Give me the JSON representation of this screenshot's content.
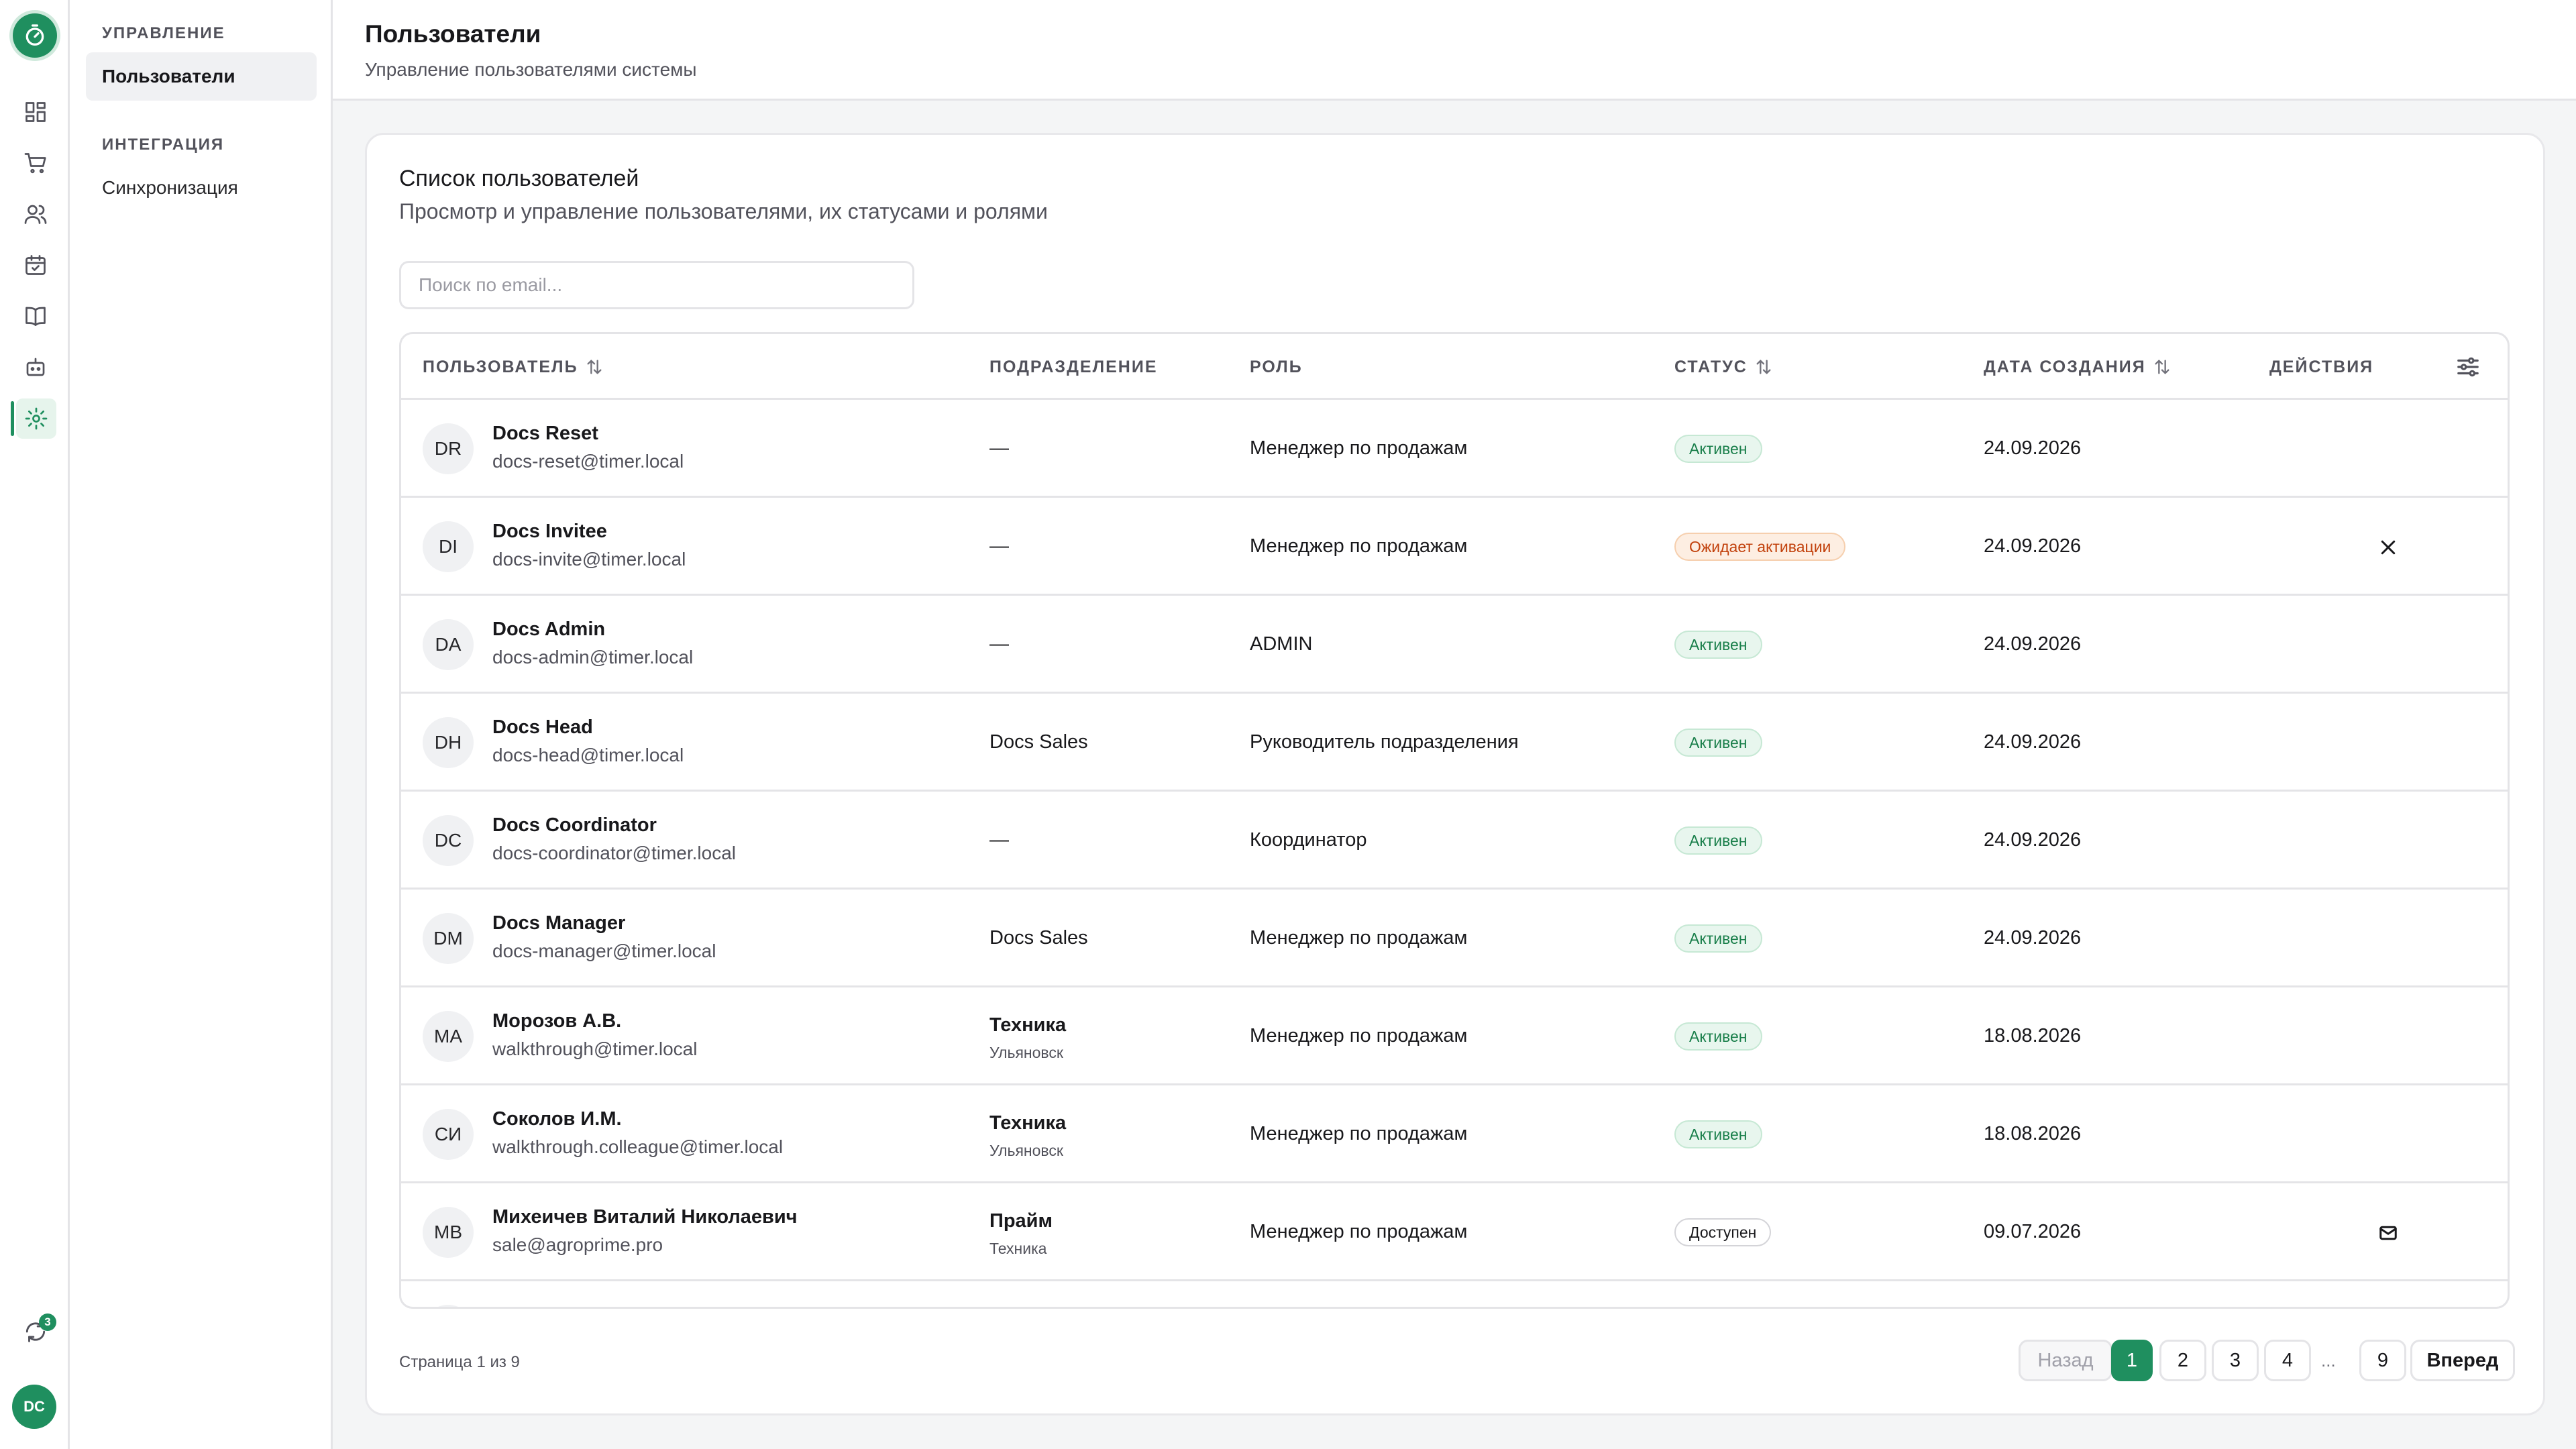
{
  "rail": {
    "icons": [
      "logo-timer-icon",
      "dashboard-icon",
      "cart-icon",
      "users-icon",
      "calendar-icon",
      "book-icon",
      "bot-icon",
      "settings-icon"
    ],
    "sync_badge": "3",
    "user_initials": "DC"
  },
  "sidebar": {
    "groups": [
      {
        "title": "УПРАВЛЕНИЕ",
        "items": [
          {
            "label": "Пользователи",
            "active": true
          }
        ]
      },
      {
        "title": "ИНТЕГРАЦИЯ",
        "items": [
          {
            "label": "Синхронизация",
            "active": false
          }
        ]
      }
    ]
  },
  "header": {
    "title": "Пользователи",
    "subtitle": "Управление пользователями системы"
  },
  "card": {
    "title": "Список пользователей",
    "subtitle": "Просмотр и управление пользователями, их статусами и ролями",
    "search_placeholder": "Поиск по email..."
  },
  "table": {
    "columns": [
      "ПОЛЬЗОВАТЕЛЬ",
      "ПОДРАЗДЕЛЕНИЕ",
      "РОЛЬ",
      "СТАТУС",
      "ДАТА СОЗДАНИЯ",
      "ДЕЙСТВИЯ"
    ],
    "rows": [
      {
        "initials": "DR",
        "name": "Docs Reset",
        "email": "docs-reset@timer.local",
        "dept": "—",
        "dept_sub": "",
        "role": "Менеджер по продажам",
        "status": "Активен",
        "status_kind": "active",
        "date": "24.09.2026",
        "action": ""
      },
      {
        "initials": "DI",
        "name": "Docs Invitee",
        "email": "docs-invite@timer.local",
        "dept": "—",
        "dept_sub": "",
        "role": "Менеджер по продажам",
        "status": "Ожидает активации",
        "status_kind": "pending",
        "date": "24.09.2026",
        "action": "close-icon"
      },
      {
        "initials": "DA",
        "name": "Docs Admin",
        "email": "docs-admin@timer.local",
        "dept": "—",
        "dept_sub": "",
        "role": "ADMIN",
        "status": "Активен",
        "status_kind": "active",
        "date": "24.09.2026",
        "action": ""
      },
      {
        "initials": "DH",
        "name": "Docs Head",
        "email": "docs-head@timer.local",
        "dept": "Docs Sales",
        "dept_sub": "",
        "role": "Руководитель подразделения",
        "status": "Активен",
        "status_kind": "active",
        "date": "24.09.2026",
        "action": ""
      },
      {
        "initials": "DC",
        "name": "Docs Coordinator",
        "email": "docs-coordinator@timer.local",
        "dept": "—",
        "dept_sub": "",
        "role": "Координатор",
        "status": "Активен",
        "status_kind": "active",
        "date": "24.09.2026",
        "action": ""
      },
      {
        "initials": "DM",
        "name": "Docs Manager",
        "email": "docs-manager@timer.local",
        "dept": "Docs Sales",
        "dept_sub": "",
        "role": "Менеджер по продажам",
        "status": "Активен",
        "status_kind": "active",
        "date": "24.09.2026",
        "action": ""
      },
      {
        "initials": "MA",
        "name": "Морозов А.В.",
        "email": "walkthrough@timer.local",
        "dept": "Техника",
        "dept_sub": "Ульяновск",
        "role": "Менеджер по продажам",
        "status": "Активен",
        "status_kind": "active",
        "date": "18.08.2026",
        "action": ""
      },
      {
        "initials": "СИ",
        "name": "Соколов И.М.",
        "email": "walkthrough.colleague@timer.local",
        "dept": "Техника",
        "dept_sub": "Ульяновск",
        "role": "Менеджер по продажам",
        "status": "Активен",
        "status_kind": "active",
        "date": "18.08.2026",
        "action": ""
      },
      {
        "initials": "MB",
        "name": "Михеичев Виталий Николаевич",
        "email": "sale@agroprime.pro",
        "dept": "Прайм",
        "dept_sub": "Техника",
        "role": "Менеджер по продажам",
        "status": "Доступен",
        "status_kind": "available",
        "date": "09.07.2026",
        "action": "mail-icon"
      }
    ]
  },
  "pagination": {
    "info": "Страница 1 из 9",
    "prev": "Назад",
    "pages": [
      "1",
      "2",
      "3",
      "4"
    ],
    "ellipsis": "...",
    "last": "9",
    "next": "Вперед",
    "current": "1"
  },
  "colors": {
    "accent": "#1f8f5f",
    "status_active_bg": "#e8f6ee",
    "status_pending_bg": "#fdeee2"
  }
}
